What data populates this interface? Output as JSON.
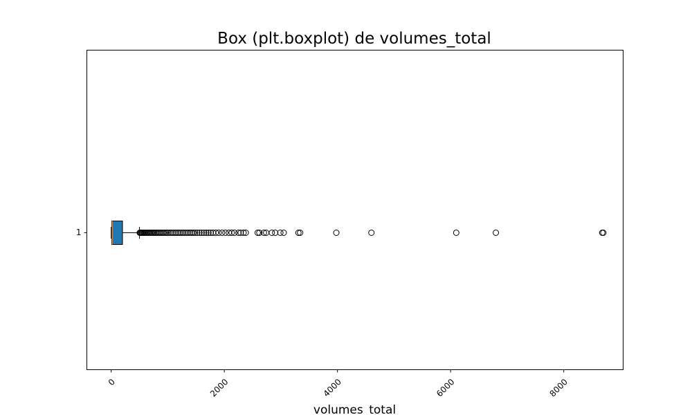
{
  "chart_data": {
    "type": "boxplot",
    "orientation": "horizontal",
    "title": "Box (plt.boxplot) de volumes_total",
    "xlabel": "volumes_total",
    "ylabel": "",
    "xlim": [
      -430,
      9050
    ],
    "xticks": [
      0,
      2000,
      4000,
      6000,
      8000
    ],
    "xtick_labels": [
      "0",
      "2000",
      "4000",
      "6000",
      "8000"
    ],
    "xtick_rotation": 45,
    "categories": [
      "1"
    ],
    "grid": false,
    "patch_artist": true,
    "colors": {
      "box_fill": "#1f77b4",
      "median": "#ff7f0e",
      "edge": "#000000"
    },
    "boxes": [
      {
        "category": "1",
        "whislo": 0,
        "q1": 10,
        "median": 20,
        "q3": 200,
        "whishi": 500,
        "fliers": [
          505,
          515,
          525,
          540,
          555,
          570,
          585,
          600,
          620,
          640,
          660,
          680,
          700,
          720,
          740,
          760,
          780,
          800,
          825,
          850,
          875,
          900,
          925,
          950,
          975,
          1000,
          1030,
          1060,
          1090,
          1120,
          1150,
          1180,
          1210,
          1240,
          1270,
          1300,
          1330,
          1360,
          1390,
          1420,
          1450,
          1480,
          1520,
          1560,
          1600,
          1640,
          1680,
          1720,
          1760,
          1800,
          1850,
          1900,
          1960,
          2020,
          2080,
          2130,
          2180,
          2250,
          2290,
          2340,
          2380,
          2590,
          2620,
          2700,
          2740,
          2840,
          2900,
          2990,
          3050,
          3310,
          3340,
          3980,
          4600,
          6100,
          6800,
          8680,
          8700
        ]
      }
    ]
  }
}
